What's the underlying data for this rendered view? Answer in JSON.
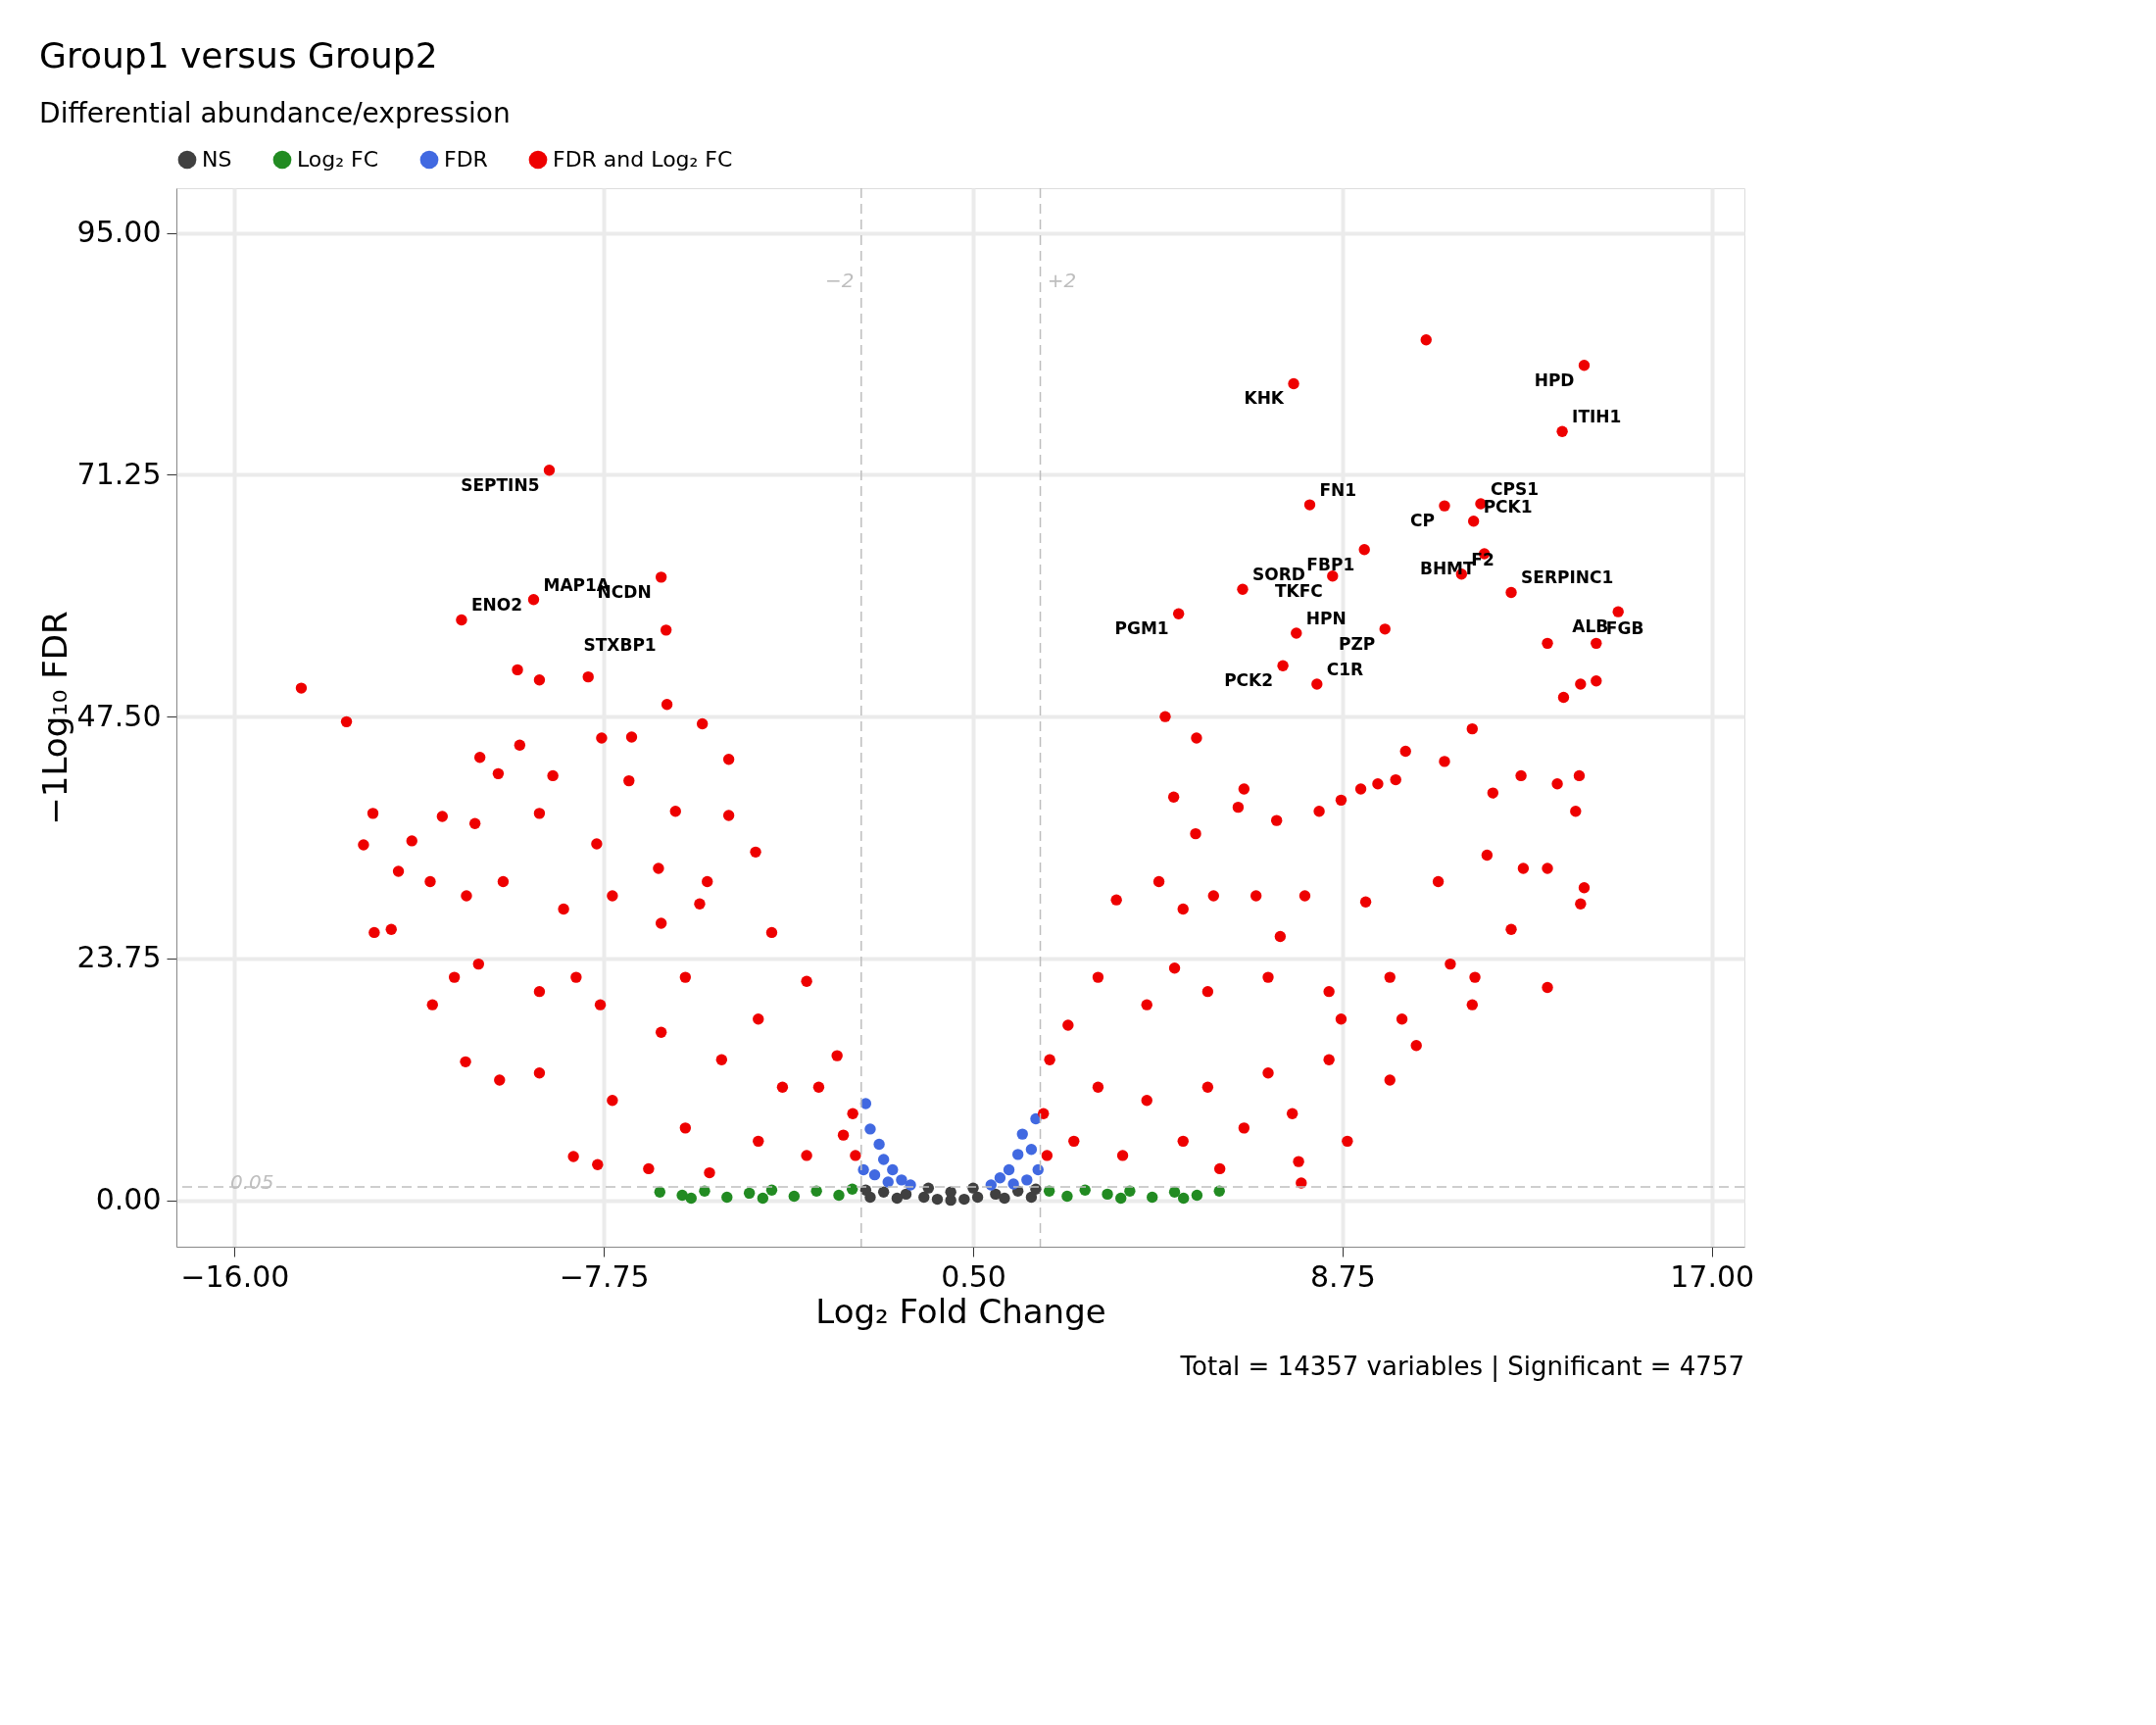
{
  "chart_data": {
    "type": "scatter",
    "title": "Group1 versus Group2",
    "subtitle": "Differential abundance/expression",
    "xlabel": "Log₂ Fold Change",
    "ylabel": "−1Log₁₀ FDR",
    "xlim": [
      -17.3,
      17.73
    ],
    "ylim": [
      -4.56,
      99.4
    ],
    "xticks": [
      {
        "value": -16,
        "label": "−16.00"
      },
      {
        "value": -7.75,
        "label": "−7.75"
      },
      {
        "value": 0.5,
        "label": "0.50"
      },
      {
        "value": 8.75,
        "label": "8.75"
      },
      {
        "value": 17,
        "label": "17.00"
      }
    ],
    "yticks": [
      {
        "value": 0,
        "label": "0.00"
      },
      {
        "value": 23.75,
        "label": "23.75"
      },
      {
        "value": 47.5,
        "label": "47.50"
      },
      {
        "value": 71.25,
        "label": "71.25"
      },
      {
        "value": 95,
        "label": "95.00"
      }
    ],
    "grid": true,
    "legend": "top",
    "marker": "circle",
    "ref_lines": [
      {
        "axis": "x",
        "value": -2,
        "label": "−2",
        "line_style": "dashed",
        "color": "#bebebe"
      },
      {
        "axis": "x",
        "value": 2,
        "label": "+2",
        "line_style": "dashed",
        "color": "#bebebe"
      },
      {
        "axis": "y",
        "value": 1.3,
        "line_style": "dashed",
        "color": "#bebebe"
      }
    ],
    "series": [
      {
        "name": "NS",
        "color": "#404040",
        "x": [
          -1.9,
          -1.5,
          -1.0,
          -0.6,
          -0.3,
          0.0,
          0.3,
          0.6,
          1.0,
          1.5,
          1.9,
          -1.8,
          -1.2,
          1.2,
          1.8,
          0.0,
          -0.5,
          0.5
        ],
        "values": [
          1.0,
          0.8,
          0.6,
          0.3,
          0.1,
          0.0,
          0.1,
          0.3,
          0.6,
          0.9,
          1.1,
          0.3,
          0.2,
          0.2,
          0.3,
          0.8,
          1.2,
          1.2
        ]
      },
      {
        "name": "Log₂ FC",
        "color": "#228b22",
        "x": [
          -6.5,
          -6,
          -5.5,
          -5,
          -4.5,
          -4,
          -3.5,
          -3,
          -2.5,
          -2.2,
          -5.8,
          -4.2,
          2.2,
          2.6,
          3,
          3.5,
          4,
          4.5,
          5,
          5.5,
          6,
          5.2,
          3.8
        ],
        "values": [
          0.8,
          0.5,
          0.9,
          0.3,
          0.7,
          1.0,
          0.4,
          0.9,
          0.5,
          1.1,
          0.2,
          0.2,
          0.9,
          0.4,
          1.0,
          0.6,
          0.9,
          0.3,
          0.8,
          0.5,
          0.9,
          0.2,
          0.2
        ]
      },
      {
        "name": "FDR",
        "color": "#4169e1",
        "x": [
          -1.9,
          -1.8,
          -1.6,
          -1.5,
          -1.3,
          -1.1,
          -0.9,
          -1.95,
          -1.7,
          -1.4,
          0.9,
          1.1,
          1.3,
          1.5,
          1.6,
          1.9,
          1.8,
          1.95,
          1.7,
          1.4
        ],
        "values": [
          9.5,
          7,
          5.5,
          4,
          3,
          2,
          1.5,
          3,
          2.5,
          1.8,
          1.5,
          2.2,
          3,
          4.5,
          6.5,
          8.0,
          5,
          3,
          2,
          1.6
        ]
      },
      {
        "name": "FDR and Log₂ FC",
        "color": "#ee0000",
        "x": [
          -14.51,
          -13.5,
          -12.91,
          -13.12,
          -12.34,
          -12.5,
          -12.88,
          -11.58,
          -10.84,
          -10.08,
          -8.43,
          -7.89,
          -9.68,
          -9.19,
          -8.1,
          -9.63,
          -10.52,
          -10.11,
          -8.89,
          -7.8,
          -7.13,
          -7.19,
          -6.34,
          -5.55,
          -4.96,
          -6.15,
          -4.96,
          -4.36,
          -5.44,
          -6.53,
          -5.61,
          -4.0,
          -3.22,
          -2.54,
          -2.19,
          -2.13,
          -11.36,
          -10.63,
          -9.19,
          -7.91,
          -10.0,
          -10.82,
          -8.65,
          -7.56,
          -6.47,
          -10.55,
          -9.19,
          -7.83,
          -6.47,
          -5.12,
          -3.76,
          -9.19,
          -7.56,
          -5.93,
          -4.3,
          -6.75,
          -5.39,
          -3.22,
          -2.4,
          -11.63,
          -12.04,
          -11.09,
          -8.37,
          -5.93,
          -4.3,
          -2.95,
          -8.97,
          -9.32,
          -6.47,
          -10.93,
          -6.36,
          10.62,
          10.16,
          11.03,
          11.65,
          12.11,
          12.74,
          13.55,
          14.04,
          13.96,
          13.69,
          14.07,
          14.42,
          13.33,
          14.15,
          14.07,
          13.33,
          11.65,
          10.4,
          8.86,
          7.83,
          7.77,
          4.79,
          5.49,
          4.98,
          5.47,
          6.55,
          6.42,
          7.28,
          8.23,
          8.72,
          9.16,
          9.54,
          9.94,
          3.7,
          4.65,
          5.19,
          5.87,
          6.82,
          7.91,
          9.27,
          10.89,
          11.98,
          12.79,
          13.33,
          2.62,
          2.21,
          2.07,
          2.15,
          3.29,
          4.38,
          5.74,
          7.09,
          8.45,
          9.81,
          11.16,
          11.71,
          3.29,
          4.38,
          5.74,
          7.09,
          8.45,
          9.81,
          3.84,
          5.19,
          6.55,
          7.63,
          6.01,
          2.75,
          5.0,
          7.36,
          8.72,
          10.08,
          12.52,
          14.15,
          13.66,
          7.66,
          8.02,
          11.03,
          11.84,
          9.24,
          11.68,
          11.92,
          6.52,
          8.53,
          11.41,
          14.91,
          12.52,
          5.09,
          7.72,
          9.7,
          14.42,
          7.42,
          8.18
        ],
        "values": [
          50.3,
          47.0,
          38.0,
          34.9,
          32.3,
          26.6,
          26.3,
          19.2,
          13.6,
          11.8,
          4.3,
          3.5,
          52.1,
          51.1,
          51.4,
          44.7,
          43.5,
          41.9,
          41.7,
          45.4,
          45.5,
          41.2,
          48.7,
          46.8,
          43.3,
          38.2,
          37.8,
          34.2,
          31.3,
          32.6,
          29.1,
          26.3,
          21.5,
          14.2,
          8.5,
          4.4,
          37.7,
          37.0,
          38.0,
          35.0,
          31.3,
          29.9,
          28.6,
          29.9,
          27.2,
          23.2,
          20.5,
          19.2,
          16.5,
          13.8,
          11.1,
          12.5,
          9.8,
          7.1,
          5.8,
          3.1,
          2.7,
          4.4,
          6.4,
          31.3,
          35.3,
          21.9,
          21.9,
          21.9,
          17.8,
          11.1,
          71.7,
          59.0,
          61.2,
          57.0,
          56.0,
          84.5,
          44.1,
          43.1,
          46.3,
          40.0,
          41.7,
          40.9,
          41.7,
          38.2,
          49.4,
          50.7,
          51.0,
          54.7,
          30.7,
          29.1,
          20.9,
          19.2,
          15.2,
          5.8,
          1.7,
          3.8,
          47.5,
          45.4,
          39.6,
          36.0,
          40.4,
          38.6,
          37.3,
          38.2,
          39.3,
          40.4,
          40.9,
          41.3,
          29.5,
          31.3,
          28.6,
          29.9,
          29.9,
          29.9,
          29.3,
          31.3,
          33.9,
          32.6,
          32.6,
          17.2,
          13.8,
          8.5,
          4.4,
          21.9,
          19.2,
          20.5,
          21.9,
          20.5,
          21.9,
          23.2,
          21.9,
          11.1,
          9.8,
          11.1,
          12.5,
          13.8,
          11.8,
          4.4,
          5.8,
          7.1,
          8.5,
          3.1,
          5.8,
          22.8,
          25.9,
          17.8,
          17.8,
          26.6,
          82.0,
          75.5,
          80.2,
          68.3,
          68.2,
          68.4,
          63.9,
          66.7,
          63.5,
          60.0,
          61.3,
          61.5,
          57.8,
          59.7,
          57.6,
          55.7,
          56.1,
          54.7,
          52.5,
          50.7
        ]
      }
    ],
    "annotations": [
      {
        "text": "HPD",
        "x": 14.15,
        "y": 82.0
      },
      {
        "text": "ITIH1",
        "x": 13.66,
        "y": 75.5
      },
      {
        "text": "KHK",
        "x": 7.66,
        "y": 80.2
      },
      {
        "text": "FN1",
        "x": 8.02,
        "y": 68.3
      },
      {
        "text": "CP",
        "x": 11.03,
        "y": 68.2
      },
      {
        "text": "CPS1",
        "x": 11.84,
        "y": 68.4
      },
      {
        "text": "FBP1",
        "x": 9.24,
        "y": 63.9
      },
      {
        "text": "PCK1",
        "x": 11.68,
        "y": 66.7
      },
      {
        "text": "BHMT",
        "x": 11.92,
        "y": 63.5
      },
      {
        "text": "SORD",
        "x": 6.52,
        "y": 60.0
      },
      {
        "text": "TKFC",
        "x": 8.53,
        "y": 61.3
      },
      {
        "text": "F2",
        "x": 11.41,
        "y": 61.5
      },
      {
        "text": "ALB",
        "x": 14.91,
        "y": 57.8
      },
      {
        "text": "SERPINC1",
        "x": 12.52,
        "y": 59.7
      },
      {
        "text": "PGM1",
        "x": 5.09,
        "y": 57.6
      },
      {
        "text": "HPN",
        "x": 7.72,
        "y": 55.7
      },
      {
        "text": "PZP",
        "x": 9.7,
        "y": 56.1
      },
      {
        "text": "FGB",
        "x": 14.42,
        "y": 54.7
      },
      {
        "text": "PCK2",
        "x": 7.42,
        "y": 52.5
      },
      {
        "text": "C1R",
        "x": 8.18,
        "y": 50.7
      },
      {
        "text": "SEPTIN5",
        "x": -8.97,
        "y": 71.7
      },
      {
        "text": "MAP1A",
        "x": -9.32,
        "y": 59.0
      },
      {
        "text": "NCDN",
        "x": -6.47,
        "y": 61.2
      },
      {
        "text": "ENO2",
        "x": -10.93,
        "y": 57.0
      },
      {
        "text": "STXBP1",
        "x": -6.36,
        "y": 56.0
      },
      "0.05",
      "Total = 14357 variables | Significant = 4757"
    ]
  }
}
